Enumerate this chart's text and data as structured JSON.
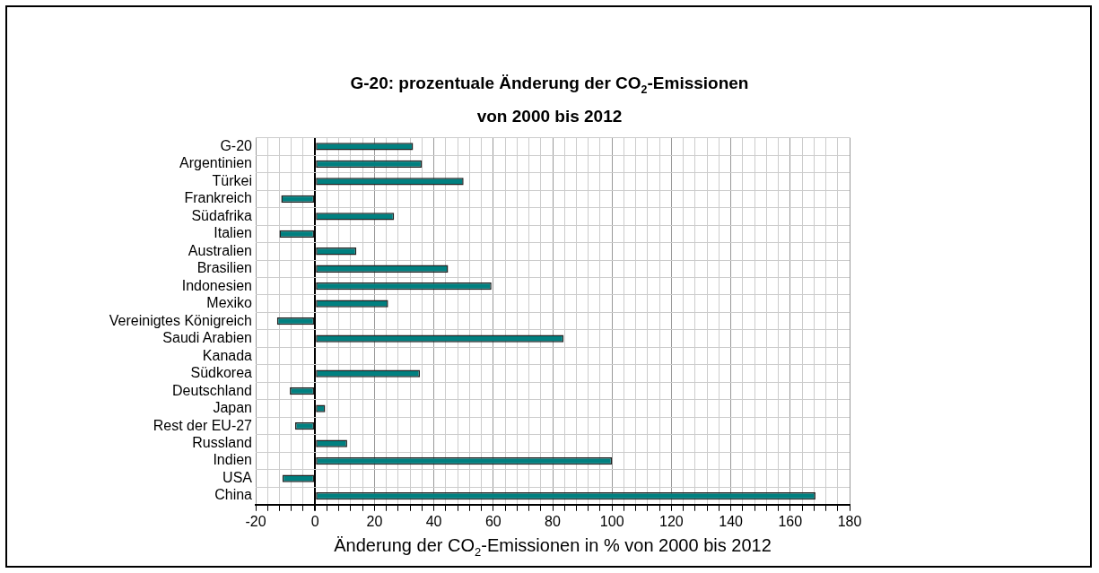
{
  "chart_data": {
    "type": "bar",
    "orientation": "horizontal",
    "title": "G-20: prozentuale Änderung der CO$_{2}$-Emissionen\nvon 2000 bis 2012",
    "xlabel": "Änderung der CO$_{2}$-Emissionen in % von 2000 bis 2012",
    "categories": [
      "G-20",
      "Argentinien",
      "Türkei",
      "Frankreich",
      "Südafrika",
      "Italien",
      "Australien",
      "Brasilien",
      "Indonesien",
      "Mexiko",
      "Vereinigtes Königreich",
      "Saudi Arabien",
      "Kanada",
      "Südkorea",
      "Deutschland",
      "Japan",
      "Rest der EU-27",
      "Russland",
      "Indien",
      "USA",
      "China"
    ],
    "values": [
      33,
      36,
      50,
      -11.4,
      26.6,
      -12,
      13.9,
      44.8,
      59.4,
      24.6,
      -12.8,
      83.7,
      0,
      35.3,
      -8.5,
      3.4,
      -6.7,
      10.8,
      100,
      -11,
      168.5
    ],
    "color": "#008080",
    "xlim": [
      -20,
      180
    ],
    "xticks": [
      -20,
      {
        "value": -16,
        "label": null
      },
      {
        "value": -12,
        "label": null
      },
      {
        "value": -8,
        "label": null
      },
      {
        "value": -4,
        "label": null
      },
      0,
      {
        "value": 4,
        "label": null
      },
      {
        "value": 8,
        "label": null
      },
      {
        "value": 12,
        "label": null
      },
      {
        "value": 16,
        "label": null
      },
      20,
      {
        "value": 24,
        "label": null
      },
      {
        "value": 28,
        "label": null
      },
      {
        "value": 32,
        "label": null
      },
      {
        "value": 36,
        "label": null
      },
      40,
      {
        "value": 44,
        "label": null
      },
      {
        "value": 48,
        "label": null
      },
      {
        "value": 52,
        "label": null
      },
      {
        "value": 56,
        "label": null
      },
      60,
      {
        "value": 64,
        "label": null
      },
      {
        "value": 68,
        "label": null
      },
      {
        "value": 72,
        "label": null
      },
      {
        "value": 76,
        "label": null
      },
      80,
      {
        "value": 84,
        "label": null
      },
      {
        "value": 88,
        "label": null
      },
      {
        "value": 92,
        "label": null
      },
      {
        "value": 96,
        "label": null
      },
      100,
      {
        "value": 104,
        "label": null
      },
      {
        "value": 108,
        "label": null
      },
      {
        "value": 112,
        "label": null
      },
      {
        "value": 116,
        "label": null
      },
      120,
      {
        "value": 124,
        "label": null
      },
      {
        "value": 128,
        "label": null
      },
      {
        "value": 132,
        "label": null
      },
      {
        "value": 136,
        "label": null
      },
      140,
      {
        "value": 144,
        "label": null
      },
      {
        "value": 148,
        "label": null
      },
      {
        "value": 152,
        "label": null
      },
      {
        "value": 156,
        "label": null
      },
      160,
      {
        "value": 164,
        "label": null
      },
      {
        "value": 168,
        "label": null
      },
      {
        "value": 172,
        "label": null
      },
      {
        "value": 176,
        "label": null
      },
      180
    ],
    "grid": true,
    "legend": false
  }
}
